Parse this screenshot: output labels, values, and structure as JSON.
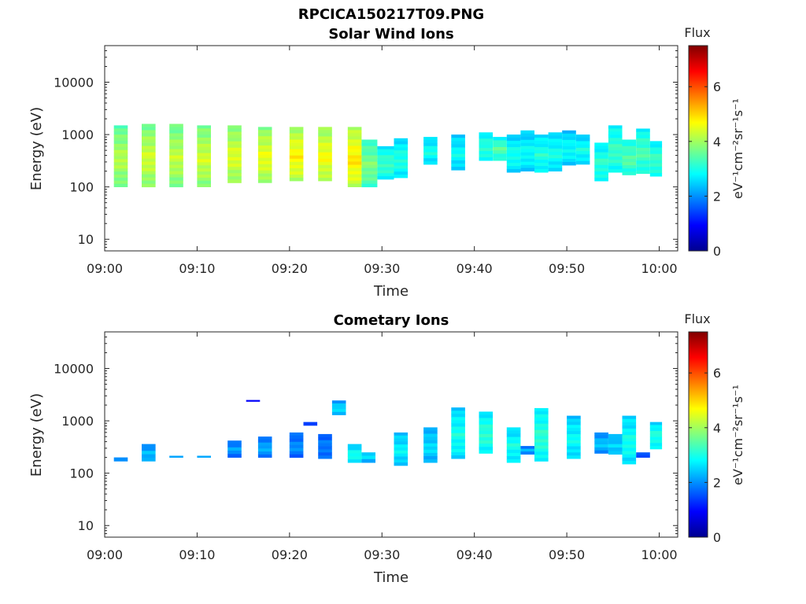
{
  "figure": {
    "title": "RPCICA150217T09.PNG"
  },
  "colorbar": {
    "title": "Flux",
    "label": "eV⁻¹cm⁻²sr⁻¹s⁻¹",
    "min": 0,
    "max": 7.5,
    "ticks": [
      0,
      2,
      4,
      6
    ],
    "colormap": "jet"
  },
  "chart_data": [
    {
      "type": "heatmap",
      "title": "Solar Wind Ions",
      "xlabel": "Time",
      "ylabel": "Energy (eV)",
      "x_ticks": [
        "09:00",
        "09:10",
        "09:20",
        "09:30",
        "09:40",
        "09:50",
        "10:00"
      ],
      "x_range": [
        "09:00",
        "10:02"
      ],
      "y_scale": "log",
      "y_ticks": [
        10,
        100,
        1000,
        10000
      ],
      "ylim": [
        6,
        50000
      ],
      "grid": false,
      "blocks": [
        {
          "t0": "09:01.0",
          "t1": "09:02.5",
          "e0": 100,
          "e1": 1500,
          "flux": 4.2
        },
        {
          "t0": "09:04.0",
          "t1": "09:05.5",
          "e0": 100,
          "e1": 1600,
          "flux": 4.4
        },
        {
          "t0": "09:07.0",
          "t1": "09:08.5",
          "e0": 100,
          "e1": 1600,
          "flux": 4.3
        },
        {
          "t0": "09:10.0",
          "t1": "09:11.5",
          "e0": 100,
          "e1": 1500,
          "flux": 4.4
        },
        {
          "t0": "09:13.3",
          "t1": "09:14.8",
          "e0": 120,
          "e1": 1500,
          "flux": 4.5
        },
        {
          "t0": "09:16.6",
          "t1": "09:18.1",
          "e0": 120,
          "e1": 1400,
          "flux": 4.6
        },
        {
          "t0": "09:20.0",
          "t1": "09:21.5",
          "e0": 130,
          "e1": 1400,
          "flux": 4.8
        },
        {
          "t0": "09:23.1",
          "t1": "09:24.6",
          "e0": 130,
          "e1": 1400,
          "flux": 4.7
        },
        {
          "t0": "09:26.3",
          "t1": "09:27.8",
          "e0": 100,
          "e1": 1400,
          "flux": 4.9
        },
        {
          "t0": "09:27.8",
          "t1": "09:29.5",
          "e0": 100,
          "e1": 800,
          "flux": 3.8
        },
        {
          "t0": "09:29.5",
          "t1": "09:31.3",
          "e0": 140,
          "e1": 600,
          "flux": 3.3
        },
        {
          "t0": "09:31.3",
          "t1": "09:32.8",
          "e0": 150,
          "e1": 850,
          "flux": 3.1
        },
        {
          "t0": "09:34.5",
          "t1": "09:36.0",
          "e0": 270,
          "e1": 900,
          "flux": 3.0
        },
        {
          "t0": "09:37.5",
          "t1": "09:39.0",
          "e0": 210,
          "e1": 1000,
          "flux": 2.9
        },
        {
          "t0": "09:40.5",
          "t1": "09:42.0",
          "e0": 320,
          "e1": 1100,
          "flux": 3.2
        },
        {
          "t0": "09:42.0",
          "t1": "09:43.5",
          "e0": 320,
          "e1": 900,
          "flux": 3.5
        },
        {
          "t0": "09:43.5",
          "t1": "09:45.0",
          "e0": 190,
          "e1": 1000,
          "flux": 3.0
        },
        {
          "t0": "09:45.0",
          "t1": "09:46.5",
          "e0": 200,
          "e1": 1200,
          "flux": 2.9
        },
        {
          "t0": "09:46.5",
          "t1": "09:48.0",
          "e0": 190,
          "e1": 1000,
          "flux": 3.1
        },
        {
          "t0": "09:48.0",
          "t1": "09:49.5",
          "e0": 200,
          "e1": 1100,
          "flux": 3.0
        },
        {
          "t0": "09:49.5",
          "t1": "09:51.0",
          "e0": 260,
          "e1": 1200,
          "flux": 2.9
        },
        {
          "t0": "09:51.0",
          "t1": "09:52.5",
          "e0": 270,
          "e1": 1000,
          "flux": 3.0
        },
        {
          "t0": "09:53.0",
          "t1": "09:54.5",
          "e0": 130,
          "e1": 700,
          "flux": 3.2
        },
        {
          "t0": "09:54.5",
          "t1": "09:56.0",
          "e0": 190,
          "e1": 1500,
          "flux": 3.3
        },
        {
          "t0": "09:56.0",
          "t1": "09:57.5",
          "e0": 170,
          "e1": 800,
          "flux": 3.5
        },
        {
          "t0": "09:57.5",
          "t1": "09:59.0",
          "e0": 180,
          "e1": 1300,
          "flux": 3.4
        },
        {
          "t0": "09:59.0",
          "t1": "10:00.3",
          "e0": 160,
          "e1": 750,
          "flux": 3.3
        }
      ]
    },
    {
      "type": "heatmap",
      "title": "Cometary Ions",
      "xlabel": "Time",
      "ylabel": "Energy (eV)",
      "x_ticks": [
        "09:00",
        "09:10",
        "09:20",
        "09:30",
        "09:40",
        "09:50",
        "10:00"
      ],
      "x_range": [
        "09:00",
        "10:02"
      ],
      "y_scale": "log",
      "y_ticks": [
        10,
        100,
        1000,
        10000
      ],
      "ylim": [
        6,
        50000
      ],
      "grid": false,
      "blocks": [
        {
          "t0": "09:01.0",
          "t1": "09:02.5",
          "e0": 170,
          "e1": 200,
          "flux": 2.2
        },
        {
          "t0": "09:04.0",
          "t1": "09:05.5",
          "e0": 170,
          "e1": 360,
          "flux": 2.4
        },
        {
          "t0": "09:07.0",
          "t1": "09:08.5",
          "e0": 200,
          "e1": 215,
          "flux": 2.0
        },
        {
          "t0": "09:10.0",
          "t1": "09:11.5",
          "e0": 200,
          "e1": 215,
          "flux": 2.3
        },
        {
          "t0": "09:13.3",
          "t1": "09:14.8",
          "e0": 200,
          "e1": 420,
          "flux": 2.1
        },
        {
          "t0": "09:15.3",
          "t1": "09:16.8",
          "e0": 2350,
          "e1": 2500,
          "flux": 1.1
        },
        {
          "t0": "09:16.6",
          "t1": "09:18.1",
          "e0": 200,
          "e1": 500,
          "flux": 2.2
        },
        {
          "t0": "09:20.0",
          "t1": "09:21.5",
          "e0": 200,
          "e1": 600,
          "flux": 2.0
        },
        {
          "t0": "09:21.5",
          "t1": "09:23.0",
          "e0": 820,
          "e1": 950,
          "flux": 1.5
        },
        {
          "t0": "09:23.1",
          "t1": "09:24.6",
          "e0": 190,
          "e1": 560,
          "flux": 1.9
        },
        {
          "t0": "09:24.6",
          "t1": "09:26.1",
          "e0": 1300,
          "e1": 2450,
          "flux": 2.6
        },
        {
          "t0": "09:26.3",
          "t1": "09:27.8",
          "e0": 160,
          "e1": 360,
          "flux": 3.0
        },
        {
          "t0": "09:27.8",
          "t1": "09:29.3",
          "e0": 160,
          "e1": 250,
          "flux": 2.7
        },
        {
          "t0": "09:31.3",
          "t1": "09:32.8",
          "e0": 140,
          "e1": 600,
          "flux": 2.8
        },
        {
          "t0": "09:34.5",
          "t1": "09:36.0",
          "e0": 160,
          "e1": 750,
          "flux": 2.6
        },
        {
          "t0": "09:37.5",
          "t1": "09:39.0",
          "e0": 190,
          "e1": 1800,
          "flux": 3.0
        },
        {
          "t0": "09:40.5",
          "t1": "09:42.0",
          "e0": 240,
          "e1": 1500,
          "flux": 3.2
        },
        {
          "t0": "09:43.5",
          "t1": "09:45.0",
          "e0": 160,
          "e1": 750,
          "flux": 3.0
        },
        {
          "t0": "09:45.0",
          "t1": "09:46.5",
          "e0": 230,
          "e1": 330,
          "flux": 2.2
        },
        {
          "t0": "09:46.5",
          "t1": "09:48.0",
          "e0": 170,
          "e1": 1750,
          "flux": 3.2
        },
        {
          "t0": "09:50.0",
          "t1": "09:51.5",
          "e0": 190,
          "e1": 1250,
          "flux": 2.9
        },
        {
          "t0": "09:53.0",
          "t1": "09:54.5",
          "e0": 240,
          "e1": 600,
          "flux": 2.4
        },
        {
          "t0": "09:54.5",
          "t1": "09:56.0",
          "e0": 230,
          "e1": 560,
          "flux": 2.6
        },
        {
          "t0": "09:56.0",
          "t1": "09:57.5",
          "e0": 150,
          "e1": 1250,
          "flux": 3.0
        },
        {
          "t0": "09:57.5",
          "t1": "09:59.0",
          "e0": 200,
          "e1": 250,
          "flux": 1.8
        },
        {
          "t0": "09:59.0",
          "t1": "10:00.3",
          "e0": 290,
          "e1": 950,
          "flux": 3.1
        }
      ]
    }
  ]
}
